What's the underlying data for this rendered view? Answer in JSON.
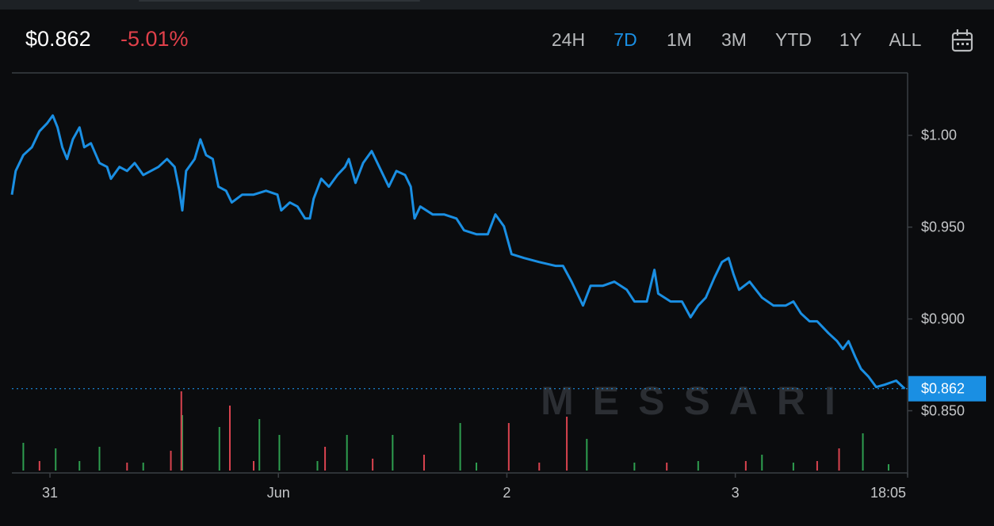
{
  "header": {
    "change": "-5.01%",
    "ranges": [
      "24H",
      "7D",
      "1M",
      "3M",
      "YTD",
      "1Y",
      "ALL"
    ],
    "active_range": 1
  },
  "chart_data": {
    "type": "line",
    "watermark": "MESSARI",
    "last_price": {
      "value": 0.862,
      "label": "$0.862"
    },
    "xlim": [
      -4,
      90.1
    ],
    "xticks": [
      {
        "value": 0,
        "label": "31"
      },
      {
        "value": 24,
        "label": "Jun"
      },
      {
        "value": 48,
        "label": "2"
      },
      {
        "value": 72,
        "label": "3"
      },
      {
        "value": 90.1,
        "label": "18:05"
      }
    ],
    "ylim": [
      0.817,
      1.034
    ],
    "yticks": [
      {
        "value": 0.85,
        "label": "$0.850"
      },
      {
        "value": 0.9,
        "label": "$0.900"
      },
      {
        "value": 0.95,
        "label": "$0.950"
      },
      {
        "value": 1.0,
        "label": "$1.00"
      }
    ],
    "series": [
      {
        "color": "#1a8fe3",
        "x": [
          -4.0,
          -3.6,
          -2.8,
          -1.9,
          -1.1,
          -0.3,
          0.3,
          0.8,
          1.3,
          1.8,
          2.4,
          3.1,
          3.6,
          4.3,
          5.2,
          6.0,
          6.4,
          7.3,
          8.1,
          8.9,
          9.8,
          10.6,
          11.4,
          12.3,
          13.1,
          13.6,
          13.9,
          14.3,
          15.2,
          15.8,
          16.4,
          17.1,
          17.7,
          18.5,
          19.1,
          20.2,
          21.4,
          22.7,
          23.9,
          24.3,
          25.2,
          26.0,
          26.8,
          27.3,
          27.7,
          28.5,
          29.3,
          30.2,
          31.0,
          31.4,
          32.1,
          32.9,
          33.8,
          34.6,
          35.6,
          36.4,
          37.3,
          37.9,
          38.3,
          38.9,
          40.2,
          41.4,
          42.7,
          43.5,
          44.8,
          46.0,
          46.8,
          47.7,
          48.5,
          49.8,
          51.4,
          53.1,
          53.9,
          54.8,
          56.0,
          56.8,
          58.1,
          59.3,
          60.6,
          61.4,
          62.7,
          63.5,
          63.9,
          65.2,
          66.4,
          67.3,
          68.1,
          68.9,
          69.8,
          70.6,
          71.3,
          71.8,
          72.4,
          73.5,
          74.8,
          76.0,
          77.3,
          78.1,
          78.9,
          79.8,
          80.6,
          81.8,
          82.7,
          83.3,
          83.9,
          84.6,
          85.2,
          86.0,
          86.8,
          87.7,
          88.9,
          89.8
        ],
        "values": [
          0.9677,
          0.9806,
          0.9892,
          0.9935,
          1.0022,
          1.0065,
          1.0108,
          1.0043,
          0.9935,
          0.9871,
          0.9978,
          1.0043,
          0.9935,
          0.9957,
          0.9849,
          0.9828,
          0.9763,
          0.9828,
          0.9806,
          0.9849,
          0.9784,
          0.9806,
          0.9828,
          0.9871,
          0.9828,
          0.9698,
          0.9591,
          0.9806,
          0.9871,
          0.9978,
          0.9892,
          0.9871,
          0.972,
          0.9698,
          0.9634,
          0.9677,
          0.9677,
          0.9698,
          0.9677,
          0.9591,
          0.9634,
          0.9612,
          0.9547,
          0.9547,
          0.9655,
          0.9763,
          0.972,
          0.9784,
          0.9828,
          0.9871,
          0.9741,
          0.9849,
          0.9914,
          0.9828,
          0.972,
          0.9806,
          0.9784,
          0.972,
          0.9547,
          0.9612,
          0.9569,
          0.9569,
          0.9547,
          0.9483,
          0.9461,
          0.9461,
          0.9569,
          0.9504,
          0.9353,
          0.9332,
          0.931,
          0.9289,
          0.9289,
          0.9203,
          0.9073,
          0.9181,
          0.9181,
          0.9203,
          0.9159,
          0.9095,
          0.9095,
          0.9267,
          0.9138,
          0.9095,
          0.9095,
          0.9009,
          0.9073,
          0.9116,
          0.9224,
          0.931,
          0.9332,
          0.9246,
          0.9159,
          0.9203,
          0.9116,
          0.9073,
          0.9073,
          0.9095,
          0.903,
          0.8987,
          0.8987,
          0.8922,
          0.8879,
          0.8836,
          0.8879,
          0.8793,
          0.8728,
          0.8685,
          0.8629,
          0.8642,
          0.8664,
          0.862
        ]
      }
    ],
    "volume": [
      {
        "color": "#2e9e4f",
        "x": [
          -2.8,
          0.6,
          3.1,
          5.2,
          9.8,
          13.9,
          17.8,
          22.0,
          24.1,
          28.1,
          31.2,
          36.0,
          43.1,
          44.8,
          56.4,
          61.4,
          68.1,
          74.8,
          78.1,
          85.4,
          88.1
        ],
        "values": [
          35,
          28,
          12,
          30,
          10,
          70,
          55,
          65,
          45,
          12,
          45,
          45,
          60,
          10,
          40,
          10,
          12,
          20,
          10,
          47,
          8
        ]
      },
      {
        "color": "#d9434f",
        "x": [
          -1.1,
          8.1,
          12.7,
          13.8,
          18.9,
          21.4,
          28.9,
          33.9,
          39.3,
          48.2,
          51.4,
          54.3,
          64.8,
          73.1,
          80.6,
          82.9
        ],
        "values": [
          12,
          10,
          25,
          100,
          82,
          12,
          30,
          15,
          20,
          60,
          10,
          68,
          10,
          12,
          12,
          28
        ]
      }
    ]
  }
}
